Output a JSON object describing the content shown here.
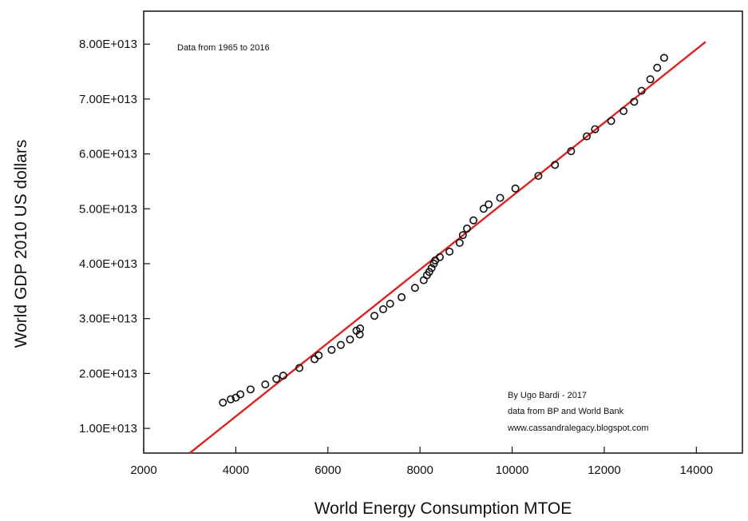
{
  "chart_data": {
    "type": "scatter",
    "title": "",
    "xlabel": "World Energy Consumption MTOE",
    "ylabel": "World GDP 2010 US dollars",
    "xlim": [
      2000,
      15000
    ],
    "ylim": [
      5500000000000.0,
      86000000000000.0
    ],
    "x_ticks": [
      2000,
      4000,
      6000,
      8000,
      10000,
      12000,
      14000
    ],
    "x_tick_labels": [
      "2000",
      "4000",
      "6000",
      "8000",
      "10000",
      "12000",
      "14000"
    ],
    "y_ticks": [
      10000000000000.0,
      20000000000000.0,
      30000000000000.0,
      40000000000000.0,
      50000000000000.0,
      60000000000000.0,
      70000000000000.0,
      80000000000000.0
    ],
    "y_tick_labels": [
      "1.00E+013",
      "2.00E+013",
      "3.00E+013",
      "4.00E+013",
      "5.00E+013",
      "6.00E+013",
      "7.00E+013",
      "8.00E+013"
    ],
    "grid": false,
    "annotation_top": "Data from 1965 to 2016",
    "credits": [
      "By Ugo Bardi - 2017",
      "data from BP and World Bank",
      "www.cassandralegacy.blogspot.com"
    ],
    "marker_color": "#111111",
    "fit_color": "#dd2222",
    "series": [
      {
        "name": "",
        "kind": "points",
        "x": [
          3720,
          3890,
          4000,
          4100,
          4320,
          4640,
          4880,
          5030,
          5380,
          5710,
          5800,
          6080,
          6280,
          6480,
          6620,
          6690,
          6700,
          7010,
          7200,
          7350,
          7600,
          7890,
          8080,
          8150,
          8200,
          8250,
          8300,
          8330,
          8430,
          8640,
          8860,
          8930,
          9020,
          9160,
          9380,
          9490,
          9740,
          10070,
          10570,
          10930,
          11280,
          11620,
          11800,
          12150,
          12420,
          12650,
          12810,
          13000,
          13150,
          13300
        ],
        "y": [
          14700000000000.0,
          15300000000000.0,
          15600000000000.0,
          16200000000000.0,
          17100000000000.0,
          18000000000000.0,
          19000000000000.0,
          19600000000000.0,
          21000000000000.0,
          22600000000000.0,
          23300000000000.0,
          24300000000000.0,
          25200000000000.0,
          26200000000000.0,
          27800000000000.0,
          27100000000000.0,
          28200000000000.0,
          30500000000000.0,
          31700000000000.0,
          32700000000000.0,
          33900000000000.0,
          35600000000000.0,
          37000000000000.0,
          37900000000000.0,
          38500000000000.0,
          39200000000000.0,
          40000000000000.0,
          40600000000000.0,
          41200000000000.0,
          42200000000000.0,
          43800000000000.0,
          45200000000000.0,
          46400000000000.0,
          47900000000000.0,
          50000000000000.0,
          50800000000000.0,
          52000000000000.0,
          53700000000000.0,
          56000000000000.0,
          58000000000000.0,
          60500000000000.0,
          63200000000000.0,
          64500000000000.0,
          66000000000000.0,
          67800000000000.0,
          69500000000000.0,
          71500000000000.0,
          73600000000000.0,
          75700000000000.0,
          77500000000000.0
        ]
      },
      {
        "name": "",
        "kind": "fit-line",
        "x": [
          3000,
          14200
        ],
        "y": [
          5500000000000.0,
          80400000000000.0
        ]
      }
    ]
  }
}
